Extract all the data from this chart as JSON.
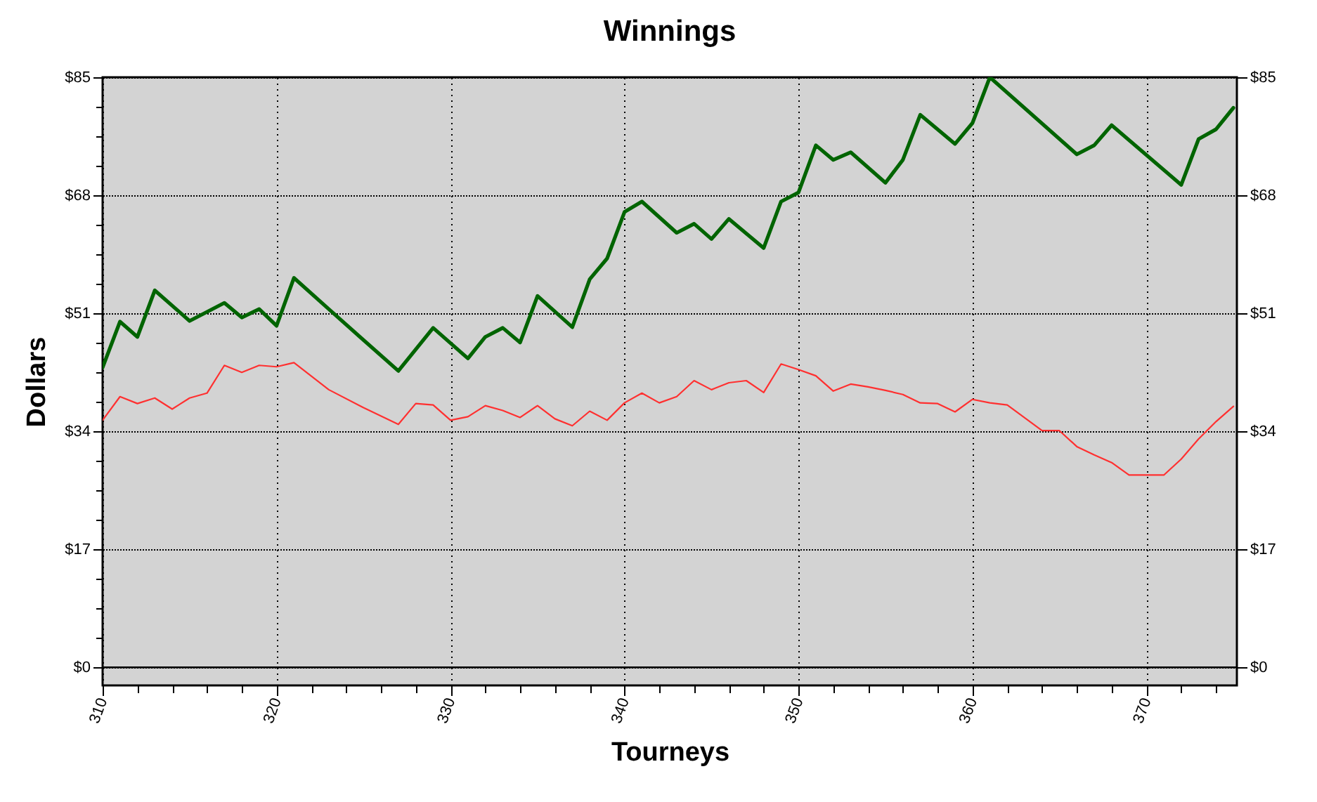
{
  "chart_data": {
    "type": "line",
    "title": "Winnings",
    "xlabel": "Tourneys",
    "ylabel": "Dollars",
    "series": [
      {
        "color": "#006400",
        "x": [
          310,
          311,
          312,
          313,
          315,
          317,
          318,
          319,
          320,
          321,
          323,
          327,
          329,
          331,
          332,
          333,
          334,
          335,
          337,
          338,
          339,
          340,
          341,
          343,
          344,
          345,
          346,
          348,
          349,
          350,
          351,
          352,
          353,
          355,
          356,
          357,
          359,
          360,
          361,
          366,
          367,
          368,
          372,
          373,
          374,
          375
        ],
        "values": [
          43.2,
          49.8,
          47.6,
          54.3,
          49.9,
          52.5,
          50.4,
          51.6,
          49.2,
          56.1,
          51.6,
          42.7,
          48.9,
          44.5,
          47.6,
          48.9,
          46.8,
          53.5,
          49.0,
          55.9,
          58.9,
          65.6,
          67.1,
          62.6,
          63.9,
          61.7,
          64.6,
          60.4,
          67.1,
          68.4,
          75.2,
          73.1,
          74.2,
          69.8,
          73.1,
          79.6,
          75.4,
          78.4,
          85.0,
          73.9,
          75.2,
          78.1,
          69.5,
          76.1,
          77.5,
          80.6
        ]
      },
      {
        "color": "#ff3030",
        "x": [
          310,
          311,
          312,
          313,
          314,
          315,
          316,
          317,
          318,
          319,
          320,
          321,
          323,
          325,
          327,
          328,
          329,
          330,
          331,
          332,
          333,
          334,
          335,
          336,
          337,
          338,
          339,
          340,
          341,
          342,
          343,
          344,
          345,
          346,
          347,
          348,
          349,
          350,
          351,
          352,
          353,
          354,
          355,
          356,
          357,
          358,
          359,
          360,
          361,
          362,
          364,
          365,
          366,
          367,
          368,
          369,
          371,
          372,
          373,
          374,
          375
        ],
        "values": [
          35.6,
          39.0,
          38.0,
          38.8,
          37.2,
          38.8,
          39.5,
          43.5,
          42.5,
          43.5,
          43.3,
          43.9,
          40.0,
          37.4,
          35.0,
          38.0,
          37.8,
          35.6,
          36.1,
          37.7,
          37.0,
          36.0,
          37.7,
          35.8,
          34.8,
          36.9,
          35.6,
          38.1,
          39.5,
          38.1,
          39.0,
          41.3,
          40.0,
          41.0,
          41.3,
          39.6,
          43.7,
          42.9,
          42.0,
          39.8,
          40.8,
          40.4,
          39.9,
          39.3,
          38.1,
          38.0,
          36.8,
          38.6,
          38.1,
          37.8,
          34.1,
          34.1,
          31.8,
          30.6,
          29.5,
          27.7,
          27.7,
          30.0,
          32.9,
          35.4,
          37.6
        ]
      }
    ],
    "xlim": [
      310,
      375.2
    ],
    "xticks": [
      310,
      {
        "value": 312,
        "label": null
      },
      {
        "value": 314,
        "label": null
      },
      {
        "value": 316,
        "label": null
      },
      {
        "value": 318,
        "label": null
      },
      320,
      {
        "value": 322,
        "label": null
      },
      {
        "value": 324,
        "label": null
      },
      {
        "value": 326,
        "label": null
      },
      {
        "value": 328,
        "label": null
      },
      330,
      {
        "value": 332,
        "label": null
      },
      {
        "value": 334,
        "label": null
      },
      {
        "value": 336,
        "label": null
      },
      {
        "value": 338,
        "label": null
      },
      340,
      {
        "value": 342,
        "label": null
      },
      {
        "value": 344,
        "label": null
      },
      {
        "value": 346,
        "label": null
      },
      {
        "value": 348,
        "label": null
      },
      350,
      {
        "value": 352,
        "label": null
      },
      {
        "value": 354,
        "label": null
      },
      {
        "value": 356,
        "label": null
      },
      {
        "value": 358,
        "label": null
      },
      360,
      {
        "value": 362,
        "label": null
      },
      {
        "value": 364,
        "label": null
      },
      {
        "value": 366,
        "label": null
      },
      {
        "value": 368,
        "label": null
      },
      370,
      {
        "value": 372,
        "label": null
      },
      {
        "value": 374,
        "label": null
      }
    ],
    "ylim": [
      -2.6,
      85
    ],
    "yticks": [
      {
        "value": 0,
        "label": "$0"
      },
      {
        "value": 4.25,
        "label": null
      },
      {
        "value": 8.5,
        "label": null
      },
      {
        "value": 12.75,
        "label": null
      },
      {
        "value": 17,
        "label": "$17"
      },
      {
        "value": 21.25,
        "label": null
      },
      {
        "value": 25.5,
        "label": null
      },
      {
        "value": 29.75,
        "label": null
      },
      {
        "value": 34,
        "label": "$34"
      },
      {
        "value": 38.25,
        "label": null
      },
      {
        "value": 42.5,
        "label": null
      },
      {
        "value": 46.75,
        "label": null
      },
      {
        "value": 51,
        "label": "$51"
      },
      {
        "value": 55.25,
        "label": null
      },
      {
        "value": 59.5,
        "label": null
      },
      {
        "value": 63.75,
        "label": null
      },
      {
        "value": 68,
        "label": "$68"
      },
      {
        "value": 72.25,
        "label": null
      },
      {
        "value": 76.5,
        "label": null
      },
      {
        "value": 80.75,
        "label": null
      },
      {
        "value": 85,
        "label": "$85"
      }
    ],
    "y2lim": [
      -2.6,
      85
    ],
    "y2ticks": [
      {
        "value": 0,
        "label": "$0"
      },
      {
        "value": 4.25,
        "label": null
      },
      {
        "value": 8.5,
        "label": null
      },
      {
        "value": 12.75,
        "label": null
      },
      {
        "value": 17,
        "label": "$17"
      },
      {
        "value": 21.25,
        "label": null
      },
      {
        "value": 25.5,
        "label": null
      },
      {
        "value": 29.75,
        "label": null
      },
      {
        "value": 34,
        "label": "$34"
      },
      {
        "value": 38.25,
        "label": null
      },
      {
        "value": 42.5,
        "label": null
      },
      {
        "value": 46.75,
        "label": null
      },
      {
        "value": 51,
        "label": "$51"
      },
      {
        "value": 55.25,
        "label": null
      },
      {
        "value": 59.5,
        "label": null
      },
      {
        "value": 63.75,
        "label": null
      },
      {
        "value": 68,
        "label": "$68"
      },
      {
        "value": 72.25,
        "label": null
      },
      {
        "value": 76.5,
        "label": null
      },
      {
        "value": 80.75,
        "label": null
      },
      {
        "value": 85,
        "label": "$85"
      }
    ],
    "ref_lines": [
      {
        "axis": "y",
        "value": 0,
        "color": "#000000",
        "line_style": "solid"
      }
    ],
    "grid": true,
    "marker": "none",
    "line_style": "solid"
  }
}
